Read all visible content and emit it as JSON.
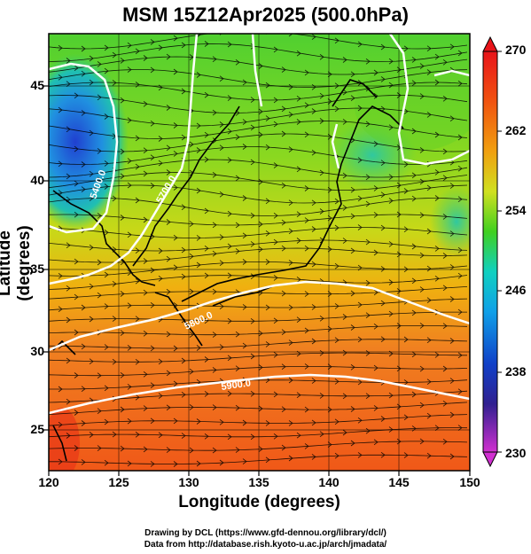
{
  "title": "MSM 15Z12Apr2025 (500.0hPa)",
  "xlabel": "Longitude (degrees)",
  "ylabel": "Latitude  (degrees)",
  "x_ticks": [
    "120",
    "125",
    "130",
    "135",
    "140",
    "145",
    "150"
  ],
  "y_ticks": [
    "45",
    "40",
    "35",
    "30",
    "25"
  ],
  "colorbar": {
    "ticks": [
      "270",
      "262",
      "254",
      "246",
      "238",
      "230"
    ],
    "colors": [
      "#e8141a",
      "#f04010",
      "#f08a10",
      "#e8c41a",
      "#b0e020",
      "#30d020",
      "#10d0b0",
      "#10a0e8",
      "#1040c8",
      "#302090",
      "#c030c0"
    ]
  },
  "contour_labels": [
    "5400.0",
    "5700.0",
    "5800.0",
    "5900.0"
  ],
  "credits": {
    "line1": "Drawing by DCL (https://www.gfd-dennou.org/library/dcl/)",
    "line2": "Data from http://database.rish.kyoto-u.ac.jp/arch/jmadata/"
  }
}
